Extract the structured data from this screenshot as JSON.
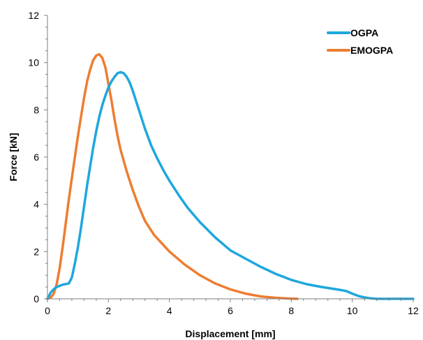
{
  "chart_data": {
    "type": "line",
    "title": "",
    "xlabel": "Displacement [mm]",
    "ylabel": "Force [kN]",
    "xlim": [
      0,
      12
    ],
    "ylim": [
      0,
      12
    ],
    "x_ticks": [
      "0",
      "2",
      "4",
      "6",
      "8",
      "10",
      "12"
    ],
    "y_ticks": [
      "0",
      "2",
      "4",
      "6",
      "8",
      "10",
      "12"
    ],
    "grid": false,
    "legend_position": "top-right",
    "series": [
      {
        "name": "OGPA",
        "color": "#1ea7dd",
        "x": [
          0.0,
          0.1,
          0.2,
          0.3,
          0.5,
          0.7,
          0.8,
          0.9,
          1.0,
          1.1,
          1.2,
          1.3,
          1.4,
          1.5,
          1.6,
          1.7,
          1.8,
          1.9,
          2.0,
          2.1,
          2.2,
          2.3,
          2.4,
          2.5,
          2.6,
          2.7,
          2.8,
          3.0,
          3.2,
          3.4,
          3.6,
          3.8,
          4.0,
          4.3,
          4.6,
          5.0,
          5.5,
          6.0,
          6.5,
          7.0,
          7.5,
          8.0,
          8.5,
          9.0,
          9.5,
          9.8,
          10.0,
          10.2,
          10.4,
          10.6,
          10.8,
          11.0,
          11.5,
          12.0
        ],
        "y": [
          0.0,
          0.25,
          0.4,
          0.5,
          0.6,
          0.65,
          0.9,
          1.5,
          2.2,
          3.0,
          3.9,
          4.8,
          5.6,
          6.4,
          7.1,
          7.7,
          8.2,
          8.6,
          8.95,
          9.2,
          9.4,
          9.55,
          9.6,
          9.55,
          9.4,
          9.15,
          8.8,
          8.0,
          7.2,
          6.5,
          5.95,
          5.45,
          5.0,
          4.4,
          3.85,
          3.25,
          2.6,
          2.05,
          1.7,
          1.35,
          1.05,
          0.8,
          0.62,
          0.5,
          0.4,
          0.33,
          0.22,
          0.12,
          0.06,
          0.02,
          0.0,
          0.0,
          0.0,
          0.0
        ]
      },
      {
        "name": "EMOGPA",
        "color": "#ee7d31",
        "x": [
          0.0,
          0.1,
          0.2,
          0.3,
          0.4,
          0.5,
          0.6,
          0.7,
          0.8,
          0.9,
          1.0,
          1.1,
          1.2,
          1.3,
          1.4,
          1.5,
          1.6,
          1.7,
          1.8,
          1.9,
          2.0,
          2.1,
          2.2,
          2.3,
          2.4,
          2.6,
          2.8,
          3.0,
          3.2,
          3.5,
          4.0,
          4.5,
          5.0,
          5.5,
          6.0,
          6.5,
          7.0,
          7.5,
          7.8,
          8.0,
          8.2
        ],
        "y": [
          0.0,
          0.05,
          0.2,
          0.6,
          1.3,
          2.2,
          3.2,
          4.2,
          5.1,
          6.0,
          6.9,
          7.7,
          8.5,
          9.2,
          9.7,
          10.1,
          10.3,
          10.35,
          10.2,
          9.8,
          9.1,
          8.4,
          7.6,
          6.9,
          6.3,
          5.4,
          4.6,
          3.9,
          3.3,
          2.7,
          2.0,
          1.45,
          1.0,
          0.65,
          0.4,
          0.22,
          0.1,
          0.04,
          0.02,
          0.01,
          0.0
        ]
      }
    ]
  }
}
